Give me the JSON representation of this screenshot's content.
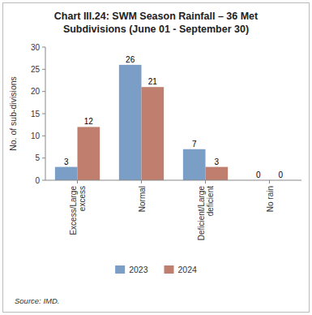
{
  "chart_data": {
    "type": "bar",
    "title": "Chart III.24: SWM Season Rainfall – 36 Met\nSubdivisions (June 01 - September 30)",
    "categories": [
      "Excess/Large\nexcess",
      "Normal",
      "Deficient/Large\ndeficient",
      "No rain"
    ],
    "series": [
      {
        "name": "2023",
        "color": "#7B9EC6",
        "values": [
          3,
          26,
          7,
          0
        ]
      },
      {
        "name": "2024",
        "color": "#C07F6E",
        "values": [
          12,
          21,
          3,
          0
        ]
      }
    ],
    "y_label": "No. of sub-divisions",
    "ylim": [
      0,
      30
    ],
    "yticks": [
      0,
      5,
      10,
      15,
      20,
      25,
      30
    ],
    "data_labels": true,
    "grid": false,
    "legend": "bottom",
    "source": "Source: IMD."
  }
}
